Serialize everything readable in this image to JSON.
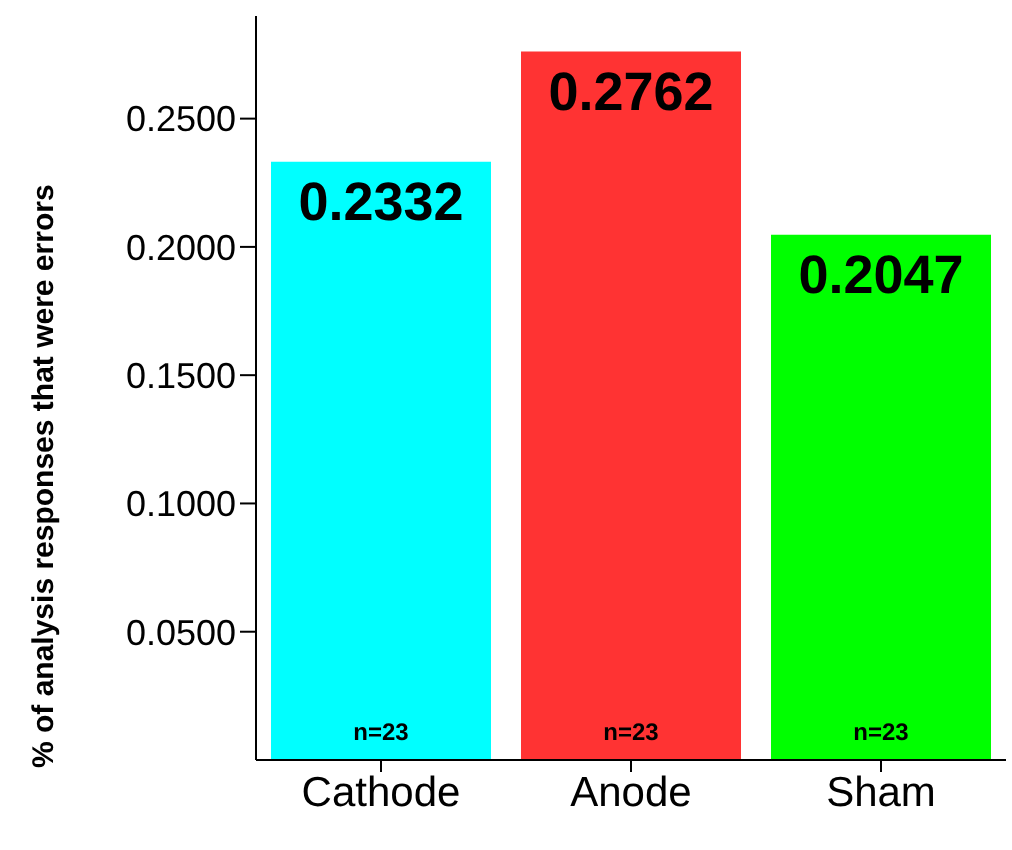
{
  "chart_data": {
    "type": "bar",
    "ylabel": "% of analysis responses that were errors",
    "categories": [
      "Cathode",
      "Anode",
      "Sham"
    ],
    "values": [
      0.2332,
      0.2762,
      0.2047
    ],
    "colors": [
      "#00ffff",
      "#ff3333",
      "#00ff00"
    ],
    "ylim": [
      0,
      0.29
    ],
    "yticks": [
      {
        "value": 0.05,
        "label": "0.0500"
      },
      {
        "value": 0.1,
        "label": "0.1000"
      },
      {
        "value": 0.15,
        "label": "0.1500"
      },
      {
        "value": 0.2,
        "label": "0.2000"
      },
      {
        "value": 0.25,
        "label": "0.2500"
      }
    ],
    "data_labels": true,
    "grid": false,
    "legend": false,
    "annotations": [
      "n=23",
      "n=23",
      "n=23"
    ]
  }
}
